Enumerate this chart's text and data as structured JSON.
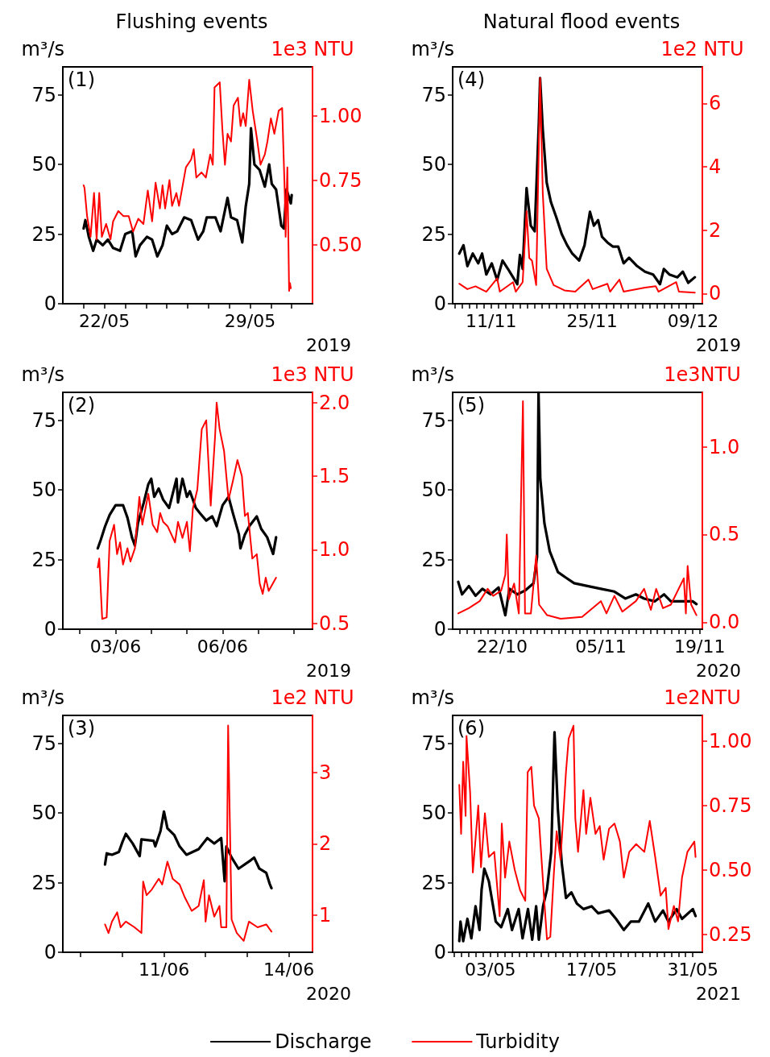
{
  "chart_data": [
    {
      "type": "line",
      "title": "Flushing events",
      "ylabel": "m³/s",
      "y2label": "1e3 NTU",
      "xlabel": "2019",
      "annotations": [
        "(1)"
      ],
      "xlim": [
        "--05-20",
        "--06-01"
      ],
      "xticks": [
        {
          "value": "--05-21",
          "label": null
        },
        {
          "value": "--05-22",
          "label": "22/05"
        },
        {
          "value": "--05-23",
          "label": null
        },
        {
          "value": "--05-24",
          "label": null
        },
        {
          "value": "--05-25",
          "label": null
        },
        {
          "value": "--05-26",
          "label": null
        },
        {
          "value": "--05-27",
          "label": null
        },
        {
          "value": "--05-28",
          "label": null
        },
        {
          "value": "--05-29",
          "label": "29/05"
        },
        {
          "value": "--05-30",
          "label": null
        },
        {
          "value": "--05-31",
          "label": null
        }
      ],
      "ylim": [
        0,
        85
      ],
      "yticks": [
        0,
        25,
        50,
        75
      ],
      "y2lim": [
        0.27,
        1.19
      ],
      "y2ticks": [
        {
          "value": 0.5,
          "label": "0.50"
        },
        {
          "value": 0.75,
          "label": "0.75"
        },
        {
          "value": 1.0,
          "label": "1.00"
        }
      ],
      "series": [
        {
          "color": "#000000",
          "x": [
            "--05-21T00:00",
            "--05-21T02:00",
            "--05-21T06:00",
            "--05-21T11:00",
            "--05-21T15:00",
            "--05-21T22:00",
            "--05-22T04:00",
            "--05-22T10:00",
            "--05-22T18:00",
            "--05-23T00:00",
            "--05-23T08:00",
            "--05-23T12:00",
            "--05-23T17:00",
            "--05-24T01:00",
            "--05-24T07:00",
            "--05-24T13:00",
            "--05-24T19:00",
            "--05-25T00:00",
            "--05-25T06:00",
            "--05-25T12:00",
            "--05-25T20:00",
            "--05-26T04:00",
            "--05-26T12:00",
            "--05-26T18:00",
            "--05-26T22:00",
            "--05-27T08:00",
            "--05-27T14:00",
            "--05-27T22:00",
            "--05-28T02:00",
            "--05-28T09:00",
            "--05-28T15:00",
            "--05-28T19:00",
            "--05-28T23:00",
            "--05-29T01:00",
            "--05-29T05:00",
            "--05-29T11:00",
            "--05-29T17:00",
            "--05-29T22:00",
            "--05-30T01:00",
            "--05-30T06:00",
            "--05-30T12:00",
            "--05-30T15:00",
            "--05-30T18:00",
            "--05-30T23:00",
            "--05-31T00:00"
          ],
          "values": [
            27,
            30,
            24,
            19,
            23,
            21,
            23,
            20,
            19,
            25,
            26,
            17,
            21,
            24,
            23,
            17,
            21,
            28,
            25,
            26,
            31,
            30,
            23,
            26,
            31,
            31,
            26,
            38,
            31,
            30,
            22,
            35,
            43,
            63,
            50,
            48,
            42,
            50,
            43,
            41,
            28,
            27,
            41,
            36,
            39
          ]
        },
        {
          "color": "#ff0000",
          "axis": "y2",
          "x": [
            "--05-21T00:00",
            "--05-21T01:00",
            "--05-21T04:00",
            "--05-21T08:00",
            "--05-21T12:00",
            "--05-21T15:00",
            "--05-21T18:00",
            "--05-21T21:00",
            "--05-22T02:00",
            "--05-22T07:00",
            "--05-22T10:00",
            "--05-22T16:00",
            "--05-22T22:00",
            "--05-23T04:00",
            "--05-23T09:00",
            "--05-23T15:00",
            "--05-23T21:00",
            "--05-24T02:00",
            "--05-24T07:00",
            "--05-24T11:00",
            "--05-24T16:00",
            "--05-24T19:00",
            "--05-24T22:00",
            "--05-25T03:00",
            "--05-25T06:00",
            "--05-25T11:00",
            "--05-25T14:00",
            "--05-25T22:00",
            "--05-26T04:00",
            "--05-26T07:00",
            "--05-26T10:00",
            "--05-26T16:00",
            "--05-26T21:00",
            "--05-27T02:00",
            "--05-27T05:00",
            "--05-27T07:00",
            "--05-27T13:00",
            "--05-27T16:00",
            "--05-27T19:00",
            "--05-27T22:00",
            "--05-28T02:00",
            "--05-28T05:00",
            "--05-28T10:00",
            "--05-28T13:00",
            "--05-28T16:00",
            "--05-28T19:00",
            "--05-28T23:00",
            "--05-29T03:00",
            "--05-29T08:00",
            "--05-29T12:00",
            "--05-29T17:00",
            "--05-29T20:00",
            "--05-30T00:00",
            "--05-30T04:00",
            "--05-30T09:00",
            "--05-30T13:00",
            "--05-30T16:00",
            "--05-30T17:00",
            "--05-30T19:00",
            "--05-30T21:00",
            "--05-30T22:00",
            "--05-30T23:00"
          ],
          "values": [
            0.73,
            0.72,
            0.61,
            0.53,
            0.7,
            0.52,
            0.7,
            0.53,
            0.58,
            0.52,
            0.59,
            0.63,
            0.61,
            0.61,
            0.55,
            0.6,
            0.58,
            0.71,
            0.59,
            0.74,
            0.64,
            0.73,
            0.64,
            0.75,
            0.65,
            0.7,
            0.65,
            0.8,
            0.83,
            0.87,
            0.76,
            0.78,
            0.76,
            0.85,
            0.81,
            1.11,
            1.13,
            0.95,
            0.81,
            0.93,
            0.9,
            1.04,
            1.07,
            0.96,
            1.01,
            0.96,
            1.14,
            1.02,
            0.91,
            0.81,
            0.85,
            0.9,
            0.99,
            0.93,
            1.02,
            1.03,
            0.7,
            0.53,
            0.8,
            0.32,
            0.35,
            0.33
          ]
        }
      ]
    },
    {
      "type": "line",
      "title": "Natural flood events",
      "ylabel": "m³/s",
      "y2label": "1e2 NTU",
      "xlabel": "2019",
      "annotations": [
        "(4)"
      ],
      "xlim": [
        "--11-05T16:00",
        "--12-10T07:00"
      ],
      "xticks": [
        {
          "value": "--11-06",
          "label": null
        },
        {
          "value": "--11-07",
          "label": null
        },
        {
          "value": "--11-08",
          "label": null
        },
        {
          "value": "--11-09",
          "label": null
        },
        {
          "value": "--11-10",
          "label": null
        },
        {
          "value": "--11-11",
          "label": "11/11"
        },
        {
          "value": "--11-12",
          "label": null
        },
        {
          "value": "--11-13",
          "label": null
        },
        {
          "value": "--11-14",
          "label": null
        },
        {
          "value": "--11-15",
          "label": null
        },
        {
          "value": "--11-16",
          "label": null
        },
        {
          "value": "--11-17",
          "label": null
        },
        {
          "value": "--11-18",
          "label": null
        },
        {
          "value": "--11-19",
          "label": null
        },
        {
          "value": "--11-20",
          "label": null
        },
        {
          "value": "--11-21",
          "label": null
        },
        {
          "value": "--11-22",
          "label": null
        },
        {
          "value": "--11-23",
          "label": null
        },
        {
          "value": "--11-24",
          "label": null
        },
        {
          "value": "--11-25",
          "label": "25/11"
        },
        {
          "value": "--11-26",
          "label": null
        },
        {
          "value": "--11-27",
          "label": null
        },
        {
          "value": "--11-28",
          "label": null
        },
        {
          "value": "--11-29",
          "label": null
        },
        {
          "value": "--11-30",
          "label": null
        },
        {
          "value": "--12-01",
          "label": null
        },
        {
          "value": "--12-02",
          "label": null
        },
        {
          "value": "--12-03",
          "label": null
        },
        {
          "value": "--12-04",
          "label": null
        },
        {
          "value": "--12-05",
          "label": null
        },
        {
          "value": "--12-06",
          "label": null
        },
        {
          "value": "--12-07",
          "label": null
        },
        {
          "value": "--12-08",
          "label": null
        },
        {
          "value": "--12-09",
          "label": "09/12"
        }
      ],
      "ylim": [
        0,
        85
      ],
      "yticks": [
        0,
        25,
        50,
        75
      ],
      "y2lim": [
        -0.32,
        7.15
      ],
      "y2ticks": [
        0,
        2,
        4,
        6
      ],
      "series": [
        {
          "color": "#000000",
          "x": [
            "--11-06T14:00",
            "--11-07T04:00",
            "--11-07T17:00",
            "--11-08T11:00",
            "--11-09T05:00",
            "--11-09T18:00",
            "--11-10T08:00",
            "--11-11T02:00",
            "--11-11T20:00",
            "--11-12T14:00",
            "--11-13T08:00",
            "--11-14T01:00",
            "--11-14T15:00",
            "--11-15T00:00",
            "--11-15T09:00",
            "--11-15T22:00",
            "--11-16T12:00",
            "--11-17T01:00",
            "--11-17T15:00",
            "--11-17T19:00",
            "--11-18T04:00",
            "--11-18T17:00",
            "--11-19T07:00",
            "--11-20T01:00",
            "--11-20T19:00",
            "--11-21T13:00",
            "--11-22T06:00",
            "--11-23T05:00",
            "--11-23T23:00",
            "--11-24T17:00",
            "--11-25T06:00",
            "--11-25T20:00",
            "--11-26T09:00",
            "--11-27T03:00",
            "--11-27T21:00",
            "--11-28T15:00",
            "--11-29T09:00",
            "--11-30T03:00",
            "--12-01T06:00",
            "--12-02T08:00",
            "--12-03T11:00",
            "--12-04T10:00",
            "--12-04T23:00",
            "--12-05T17:00",
            "--12-06T20:00",
            "--12-07T14:00",
            "--12-08T08:00",
            "--12-09T06:00"
          ],
          "values": [
            18,
            21,
            13.5,
            18,
            14.5,
            18,
            10.5,
            14.5,
            8.5,
            15.5,
            12.5,
            9.5,
            7,
            17.5,
            12.5,
            41.5,
            28,
            26,
            65.5,
            81,
            62.5,
            43.5,
            36.5,
            31,
            25,
            21,
            18,
            15.5,
            21,
            33,
            28,
            30,
            24,
            22,
            20.5,
            20.5,
            14.5,
            16.5,
            13.5,
            11.5,
            10.5,
            7,
            12.5,
            10.5,
            9.5,
            11.5,
            7.5,
            9.5
          ]
        },
        {
          "color": "#ff0000",
          "axis": "y2",
          "x": [
            "--11-06T14:00",
            "--11-07T17:00",
            "--11-08T20:00",
            "--11-10T08:00",
            "--11-11T20:00",
            "--11-12T05:00",
            "--11-14T01:00",
            "--11-14T10:00",
            "--11-15T09:00",
            "--11-15T22:00",
            "--11-16T07:00",
            "--11-16T16:00",
            "--11-17T06:00",
            "--11-17T19:00",
            "--11-18T04:00",
            "--11-18T17:00",
            "--11-19T16:00",
            "--11-21T04:00",
            "--11-22T16:00",
            "--11-24T12:00",
            "--11-25T02:00",
            "--11-27T03:00",
            "--11-27T12:00",
            "--11-28T19:00",
            "--11-29T09:00",
            "--12-02T08:00",
            "--12-03T20:00",
            "--12-04T05:00",
            "--12-06T16:00",
            "--12-07T01:00",
            "--12-09T06:00"
          ],
          "values": [
            0.31,
            0.14,
            0.23,
            0.06,
            0.48,
            0.06,
            0.36,
            0.06,
            0.36,
            2.6,
            1.12,
            1.04,
            0.27,
            6.8,
            3.15,
            0.78,
            0.27,
            0.1,
            0.06,
            0.44,
            0.14,
            0.31,
            0.06,
            0.44,
            0.06,
            0.19,
            0.23,
            0.06,
            0.36,
            0.06,
            0.03
          ]
        }
      ]
    },
    {
      "type": "line",
      "ylabel": "m³/s",
      "y2label": "1e3 NTU",
      "xlabel": "2019",
      "annotations": [
        "(2)"
      ],
      "xlim": [
        "--06-01T12:30",
        "--06-08T12:30"
      ],
      "xticks": [
        {
          "value": "--06-02",
          "label": null
        },
        {
          "value": "--06-03",
          "label": "03/06"
        },
        {
          "value": "--06-04",
          "label": null
        },
        {
          "value": "--06-05",
          "label": null
        },
        {
          "value": "--06-06",
          "label": "06/06"
        },
        {
          "value": "--06-07",
          "label": null
        },
        {
          "value": "--06-08",
          "label": null
        }
      ],
      "ylim": [
        0,
        85
      ],
      "yticks": [
        0,
        25,
        50,
        75
      ],
      "y2lim": [
        0.46,
        2.07
      ],
      "y2ticks": [
        0.5,
        {
          "value": 1.0,
          "label": "1.0"
        },
        1.5,
        {
          "value": 2.0,
          "label": "2.0"
        }
      ],
      "series": [
        {
          "color": "#000000",
          "x": [
            "--06-02T12:00",
            "--06-02T14:00",
            "--06-02T17:00",
            "--06-02T20:00",
            "--06-03T00:00",
            "--06-03T05:00",
            "--06-03T08:00",
            "--06-03T11:00",
            "--06-03T13:00",
            "--06-03T15:00",
            "--06-03T19:00",
            "--06-03T22:00",
            "--06-04T00:00",
            "--06-04T02:00",
            "--06-04T05:00",
            "--06-04T08:00",
            "--06-04T12:00",
            "--06-04T17:00",
            "--06-04T18:00",
            "--06-04T21:00",
            "--06-05T00:00",
            "--06-05T02:00",
            "--06-05T06:00",
            "--06-05T09:00",
            "--06-05T13:00",
            "--06-05T17:00",
            "--06-05T20:00",
            "--06-06T00:00",
            "--06-06T04:00",
            "--06-06T07:00",
            "--06-06T11:00",
            "--06-06T12:00",
            "--06-06T15:00",
            "--06-06T18:00",
            "--06-06T23:00",
            "--06-07T02:00",
            "--06-07T06:00",
            "--06-07T10:00",
            "--06-07T12:00"
          ],
          "values": [
            29,
            32,
            37,
            41,
            44.5,
            44.5,
            40,
            33,
            30,
            38,
            45.5,
            52,
            54,
            47.5,
            50.5,
            46.5,
            43.5,
            54,
            45.5,
            54,
            47.5,
            49.5,
            43.5,
            41.5,
            39,
            40.5,
            37,
            44.5,
            47.5,
            41.5,
            34,
            29,
            34,
            37,
            40.5,
            36,
            33,
            27,
            33
          ]
        },
        {
          "color": "#ff0000",
          "axis": "y2",
          "x": [
            "--06-02T12:00",
            "--06-02T13:00",
            "--06-02T15:00",
            "--06-02T18:00",
            "--06-02T20:00",
            "--06-02T23:00",
            "--06-03T01:00",
            "--06-03T03:00",
            "--06-03T05:00",
            "--06-03T08:00",
            "--06-03T10:00",
            "--06-03T13:00",
            "--06-03T16:00",
            "--06-03T18:00",
            "--06-03T22:00",
            "--06-04T01:00",
            "--06-04T04:00",
            "--06-04T06:00",
            "--06-04T08:00",
            "--06-04T11:00",
            "--06-04T16:00",
            "--06-04T18:00",
            "--06-04T21:00",
            "--06-05T00:00",
            "--06-05T02:00",
            "--06-05T04:00",
            "--06-05T07:00",
            "--06-05T10:00",
            "--06-05T13:00",
            "--06-05T16:00",
            "--06-05T19:00",
            "--06-05T20:00",
            "--06-05T22:00",
            "--06-06T01:00",
            "--06-06T04:00",
            "--06-06T07:00",
            "--06-06T10:00",
            "--06-06T13:00",
            "--06-06T15:00",
            "--06-06T17:00",
            "--06-06T20:00",
            "--06-06T23:00",
            "--06-07T01:00",
            "--06-07T03:00",
            "--06-07T05:00",
            "--06-07T07:00",
            "--06-07T12:00"
          ],
          "values": [
            0.88,
            0.94,
            0.53,
            0.54,
            1.06,
            1.17,
            0.97,
            1.05,
            0.9,
            1.01,
            0.92,
            1.01,
            1.36,
            1.17,
            1.38,
            1.17,
            1.12,
            1.25,
            1.19,
            1.16,
            1.05,
            1.19,
            1.08,
            1.19,
            0.99,
            1.28,
            1.41,
            1.82,
            1.88,
            1.3,
            1.78,
            2.0,
            1.82,
            1.67,
            1.34,
            1.47,
            1.61,
            1.5,
            1.23,
            1.25,
            0.94,
            0.97,
            0.77,
            0.7,
            0.81,
            0.72,
            0.81
          ]
        }
      ]
    },
    {
      "type": "line",
      "ylabel": "m³/s",
      "y2label": "1e3NTU",
      "xlabel": "2020",
      "annotations": [
        "(5)"
      ],
      "xlim": [
        "--10-15",
        "--11-19T09:00"
      ],
      "xticks": [
        {
          "value": "--10-16",
          "label": null
        },
        {
          "value": "--10-17",
          "label": null
        },
        {
          "value": "--10-18",
          "label": null
        },
        {
          "value": "--10-19",
          "label": null
        },
        {
          "value": "--10-20",
          "label": null
        },
        {
          "value": "--10-21",
          "label": null
        },
        {
          "value": "--10-22",
          "label": "22/10"
        },
        {
          "value": "--10-23",
          "label": null
        },
        {
          "value": "--10-24",
          "label": null
        },
        {
          "value": "--10-25",
          "label": null
        },
        {
          "value": "--10-26",
          "label": null
        },
        {
          "value": "--10-27",
          "label": null
        },
        {
          "value": "--10-28",
          "label": null
        },
        {
          "value": "--10-29",
          "label": null
        },
        {
          "value": "--10-30",
          "label": null
        },
        {
          "value": "--10-31",
          "label": null
        },
        {
          "value": "--11-01",
          "label": null
        },
        {
          "value": "--11-02",
          "label": null
        },
        {
          "value": "--11-03",
          "label": null
        },
        {
          "value": "--11-04",
          "label": null
        },
        {
          "value": "--11-05",
          "label": "05/11"
        },
        {
          "value": "--11-06",
          "label": null
        },
        {
          "value": "--11-07",
          "label": null
        },
        {
          "value": "--11-08",
          "label": null
        },
        {
          "value": "--11-09",
          "label": null
        },
        {
          "value": "--11-10",
          "label": null
        },
        {
          "value": "--11-11",
          "label": null
        },
        {
          "value": "--11-12",
          "label": null
        },
        {
          "value": "--11-13",
          "label": null
        },
        {
          "value": "--11-14",
          "label": null
        },
        {
          "value": "--11-15",
          "label": null
        },
        {
          "value": "--11-16",
          "label": null
        },
        {
          "value": "--11-17",
          "label": null
        },
        {
          "value": "--11-18",
          "label": null
        },
        {
          "value": "--11-19",
          "label": "19/11"
        }
      ],
      "ylim": [
        0,
        85
      ],
      "yticks": [
        0,
        25,
        50,
        75
      ],
      "y2lim": [
        -0.04,
        1.31
      ],
      "y2ticks": [
        {
          "value": 0,
          "label": "0.0"
        },
        0.5,
        {
          "value": 1.0,
          "label": "1.0"
        }
      ],
      "series": [
        {
          "color": "#000000",
          "x": [
            "--10-15T19:00",
            "--10-16T08:00",
            "--10-17T07:00",
            "--10-18T06:00",
            "--10-19T05:00",
            "--10-20T09:00",
            "--10-21T12:00",
            "--10-22T11:00",
            "--10-23T01:00",
            "--10-24T04:00",
            "--10-25T08:00",
            "--10-26T11:00",
            "--10-26T23:00",
            "--10-27T04:00",
            "--10-27T10:00",
            "--10-28T00:00",
            "--10-28T18:00",
            "--10-29T22:00",
            "--10-31T01:00",
            "--11-01T05:00",
            "--11-03T02:00",
            "--11-05T00:00",
            "--11-06T22:00",
            "--11-08T11:00",
            "--11-09T23:00",
            "--11-11T03:00",
            "--11-12T15:00",
            "--11-13T23:00",
            "--11-14T22:00",
            "--11-16T11:00",
            "--11-18T00:00",
            "--11-18T13:00"
          ],
          "values": [
            17,
            12.5,
            15.5,
            12,
            14.5,
            12.5,
            15,
            5,
            14.5,
            12.5,
            14,
            16.5,
            26,
            85,
            54,
            38,
            28,
            20.5,
            18.5,
            16.5,
            15.5,
            14.5,
            13.5,
            11,
            12.5,
            11,
            10,
            12.5,
            10,
            10,
            10,
            9
          ]
        },
        {
          "color": "#ff0000",
          "axis": "y2",
          "x": [
            "--10-15T19:00",
            "--10-17T07:00",
            "--10-18T20:00",
            "--10-19T23:00",
            "--10-20T18:00",
            "--10-21T21:00",
            "--10-22T11:00",
            "--10-22T16:00",
            "--10-22T23:00",
            "--10-23T17:00",
            "--10-24T09:00",
            "--10-24T23:00",
            "--10-25T06:00",
            "--10-26T02:00",
            "--10-26T20:00",
            "--10-27T06:00",
            "--10-28T09:00",
            "--10-30T07:00",
            "--11-02T08:00",
            "--11-05T00:00",
            "--11-05T19:00",
            "--11-06T22:00",
            "--11-08T01:00",
            "--11-09T23:00",
            "--11-11T03:00",
            "--11-12T02:00",
            "--11-12T20:00",
            "--11-13T19:00",
            "--11-14T22:00",
            "--11-16T18:00",
            "--11-17T01:00",
            "--11-17T07:00",
            "--11-17T19:00",
            "--11-18T13:00"
          ],
          "values": [
            0.05,
            0.08,
            0.12,
            0.19,
            0.15,
            0.18,
            0.27,
            0.5,
            0.13,
            0.22,
            0.05,
            1.26,
            0.05,
            0.05,
            0.38,
            0.1,
            0.04,
            0.02,
            0.03,
            0.12,
            0.05,
            0.15,
            0.06,
            0.12,
            0.19,
            0.07,
            0.19,
            0.08,
            0.1,
            0.25,
            0.05,
            0.32,
            0.1,
            0.04
          ]
        }
      ]
    },
    {
      "type": "line",
      "ylabel": "m³/s",
      "y2label": "1e2 NTU",
      "xlabel": "2020",
      "annotations": [
        "(3)"
      ],
      "legend": "bottom",
      "xlim": [
        "--06-08T13:40",
        "--06-14T13:40"
      ],
      "xticks": [
        {
          "value": "--06-09",
          "label": null
        },
        {
          "value": "--06-10",
          "label": null
        },
        {
          "value": "--06-11",
          "label": "11/06"
        },
        {
          "value": "--06-12",
          "label": null
        },
        {
          "value": "--06-13",
          "label": null
        },
        {
          "value": "--06-14",
          "label": "14/06"
        }
      ],
      "ylim": [
        0,
        85
      ],
      "yticks": [
        0,
        25,
        50,
        75
      ],
      "y2lim": [
        0.48,
        3.8
      ],
      "y2ticks": [
        1,
        2,
        3
      ],
      "series": [
        {
          "name": "Discharge",
          "color": "#000000",
          "x": [
            "--06-09T14:00",
            "--06-09T15:00",
            "--06-09T18:00",
            "--06-09T22:00",
            "--06-10T00:00",
            "--06-10T02:00",
            "--06-10T06:00",
            "--06-10T10:00",
            "--06-10T11:00",
            "--06-10T18:00",
            "--06-10T19:00",
            "--06-10T22:00",
            "--06-11T00:00",
            "--06-11T02:00",
            "--06-11T06:00",
            "--06-11T09:00",
            "--06-11T13:00",
            "--06-11T20:00",
            "--06-12T01:00",
            "--06-12T05:00",
            "--06-12T09:00",
            "--06-12T11:00",
            "--06-12T12:00",
            "--06-12T15:00",
            "--06-12T19:00",
            "--06-13T02:00",
            "--06-13T04:00",
            "--06-13T07:00",
            "--06-13T11:00",
            "--06-13T13:00",
            "--06-13T14:00"
          ],
          "values": [
            31.5,
            35.5,
            35,
            36,
            39.5,
            42.5,
            39,
            34.5,
            40.5,
            40,
            38,
            43.5,
            50.5,
            44.5,
            42,
            38,
            35,
            37,
            41,
            39,
            41,
            25.5,
            38,
            34,
            30,
            33,
            34,
            30,
            28.5,
            24.5,
            23
          ]
        },
        {
          "name": "Turbidity",
          "color": "#ff0000",
          "axis": "y2",
          "x": [
            "--06-09T14:00",
            "--06-09T16:00",
            "--06-09T18:00",
            "--06-09T21:00",
            "--06-09T23:00",
            "--06-10T02:00",
            "--06-10T07:00",
            "--06-10T11:00",
            "--06-10T12:00",
            "--06-10T14:00",
            "--06-10T17:00",
            "--06-10T21:00",
            "--06-10T23:00",
            "--06-11T02:00",
            "--06-11T05:00",
            "--06-11T09:00",
            "--06-11T12:00",
            "--06-11T16:00",
            "--06-11T20:00",
            "--06-11T23:00",
            "--06-12T00:00",
            "--06-12T02:00",
            "--06-12T05:00",
            "--06-12T08:00",
            "--06-12T09:00",
            "--06-12T12:00",
            "--06-12T13:00",
            "--06-12T15:00",
            "--06-12T18:00",
            "--06-12T22:00",
            "--06-13T01:00",
            "--06-13T06:00",
            "--06-13T11:00",
            "--06-13T14:00"
          ],
          "values": [
            0.87,
            0.75,
            0.91,
            1.04,
            0.83,
            0.91,
            0.83,
            0.75,
            1.47,
            1.28,
            1.36,
            1.51,
            1.43,
            1.75,
            1.51,
            1.43,
            1.25,
            1.06,
            1.13,
            1.49,
            0.91,
            1.28,
            0.98,
            1.13,
            0.83,
            0.83,
            3.66,
            0.94,
            0.75,
            0.64,
            0.91,
            0.83,
            0.87,
            0.77
          ]
        }
      ]
    },
    {
      "type": "line",
      "ylabel": "m³/s",
      "y2label": "1e2NTU",
      "xlabel": "2021",
      "annotations": [
        "(6)"
      ],
      "xlim": [
        "--04-27T19:00",
        "--06-01T07:30"
      ],
      "xticks": [
        {
          "value": "--04-28",
          "label": null
        },
        {
          "value": "--04-29",
          "label": null
        },
        {
          "value": "--04-30",
          "label": null
        },
        {
          "value": "--05-01",
          "label": null
        },
        {
          "value": "--05-02",
          "label": null
        },
        {
          "value": "--05-03",
          "label": "03/05"
        },
        {
          "value": "--05-04",
          "label": null
        },
        {
          "value": "--05-05",
          "label": null
        },
        {
          "value": "--05-06",
          "label": null
        },
        {
          "value": "--05-07",
          "label": null
        },
        {
          "value": "--05-08",
          "label": null
        },
        {
          "value": "--05-09",
          "label": null
        },
        {
          "value": "--05-10",
          "label": null
        },
        {
          "value": "--05-11",
          "label": null
        },
        {
          "value": "--05-12",
          "label": null
        },
        {
          "value": "--05-13",
          "label": null
        },
        {
          "value": "--05-14",
          "label": null
        },
        {
          "value": "--05-15",
          "label": null
        },
        {
          "value": "--05-16",
          "label": null
        },
        {
          "value": "--05-17",
          "label": "17/05"
        },
        {
          "value": "--05-18",
          "label": null
        },
        {
          "value": "--05-19",
          "label": null
        },
        {
          "value": "--05-20",
          "label": null
        },
        {
          "value": "--05-21",
          "label": null
        },
        {
          "value": "--05-22",
          "label": null
        },
        {
          "value": "--05-23",
          "label": null
        },
        {
          "value": "--05-24",
          "label": null
        },
        {
          "value": "--05-25",
          "label": null
        },
        {
          "value": "--05-26",
          "label": null
        },
        {
          "value": "--05-27",
          "label": null
        },
        {
          "value": "--05-28",
          "label": null
        },
        {
          "value": "--05-29",
          "label": null
        },
        {
          "value": "--05-30",
          "label": null
        },
        {
          "value": "--05-31",
          "label": "31/05"
        }
      ],
      "ylim": [
        0,
        85
      ],
      "yticks": [
        0,
        25,
        50,
        75
      ],
      "y2lim": [
        0.18,
        1.1
      ],
      "y2ticks": [
        0.25,
        {
          "value": 0.5,
          "label": "0.50"
        },
        0.75,
        {
          "value": 1.0,
          "label": "1.00"
        }
      ],
      "series": [
        {
          "color": "#000000",
          "x": [
            "--04-28T17:00",
            "--04-28T21:00",
            "--04-29T06:00",
            "--04-29T20:00",
            "--04-30T09:00",
            "--04-30T23:00",
            "--05-01T12:00",
            "--05-01T19:00",
            "--05-02T04:00",
            "--05-02T19:00",
            "--05-03T18:00",
            "--05-04T12:00",
            "--05-05T10:00",
            "--05-06T00:00",
            "--05-06T22:00",
            "--05-07T11:00",
            "--05-08T05:00",
            "--05-08T19:00",
            "--05-09T08:00",
            "--05-09T17:00",
            "--05-10T07:00",
            "--05-10T20:00",
            "--05-11T10:00",
            "--05-11T21:00",
            "--05-12T08:00",
            "--05-12T21:00",
            "--05-13T11:00",
            "--05-14T05:00",
            "--05-14T23:00",
            "--05-15T21:00",
            "--05-17T00:00",
            "--05-17T22:00",
            "--05-19T10:00",
            "--05-20T09:00",
            "--05-21T11:00",
            "--05-22T10:00",
            "--05-23T13:00",
            "--05-24T20:00",
            "--05-25T19:00",
            "--05-26T21:00",
            "--05-27T15:00",
            "--05-28T18:00",
            "--05-29T12:00",
            "--05-31T00:00",
            "--05-31T09:00"
          ],
          "values": [
            4,
            11,
            4,
            12,
            5,
            16.5,
            8,
            22.5,
            30,
            25.5,
            11,
            9,
            15.5,
            8,
            15.5,
            5,
            15.5,
            4.5,
            16.5,
            4.5,
            16.5,
            22.5,
            36,
            79,
            51.5,
            32,
            19.5,
            21.5,
            17.5,
            15.5,
            16.5,
            14,
            15,
            12,
            8,
            11,
            11,
            17.5,
            11,
            15,
            11,
            15.5,
            12,
            15.5,
            13
          ]
        },
        {
          "color": "#ff0000",
          "axis": "y2",
          "x": [
            "--04-28T17:00",
            "--04-28T23:00",
            "--04-29T06:00",
            "--04-29T14:00",
            "--04-29T17:00",
            "--04-30T05:00",
            "--04-30T14:00",
            "--05-01T08:00",
            "--05-01T17:00",
            "--05-02T06:00",
            "--05-02T19:00",
            "--05-03T13:00",
            "--05-04T07:00",
            "--05-04T14:00",
            "--05-05T01:00",
            "--05-05T15:00",
            "--05-06T09:00",
            "--05-07T03:00",
            "--05-07T20:00",
            "--05-08T04:00",
            "--05-08T16:00",
            "--05-09T01:00",
            "--05-09T17:00",
            "--05-10T11:00",
            "--05-10T20:00",
            "--05-11T07:00",
            "--05-11T19:00",
            "--05-12T04:00",
            "--05-12T17:00",
            "--05-13T11:00",
            "--05-13T20:00",
            "--05-14T12:00",
            "--05-14T18:00",
            "--05-15T03:00",
            "--05-15T21:00",
            "--05-16T06:00",
            "--05-16T20:00",
            "--05-17T13:00",
            "--05-18T03:00",
            "--05-18T16:00",
            "--05-19T10:00",
            "--05-20T04:00",
            "--05-20T22:00",
            "--05-21T11:00",
            "--05-22T05:00",
            "--05-23T04:00",
            "--05-24T07:00",
            "--05-25T01:00",
            "--05-25T19:00",
            "--05-26T13:00",
            "--05-27T06:00",
            "--05-27T15:00",
            "--05-28T09:00",
            "--05-28T23:00",
            "--05-29T12:00",
            "--05-30T06:00",
            "--05-31T05:00",
            "--05-31T09:00"
          ],
          "values": [
            0.83,
            0.64,
            0.92,
            0.71,
            1.02,
            0.8,
            0.49,
            0.75,
            0.51,
            0.72,
            0.55,
            0.57,
            0.32,
            0.68,
            0.47,
            0.61,
            0.5,
            0.42,
            0.38,
            0.88,
            0.9,
            0.75,
            0.7,
            0.38,
            0.23,
            0.24,
            0.49,
            0.65,
            0.54,
            0.88,
            1.01,
            1.06,
            0.7,
            0.57,
            0.81,
            0.64,
            0.78,
            0.64,
            0.67,
            0.54,
            0.66,
            0.68,
            0.61,
            0.47,
            0.57,
            0.6,
            0.57,
            0.69,
            0.55,
            0.4,
            0.43,
            0.27,
            0.36,
            0.3,
            0.47,
            0.57,
            0.61,
            0.55
          ]
        }
      ]
    }
  ]
}
